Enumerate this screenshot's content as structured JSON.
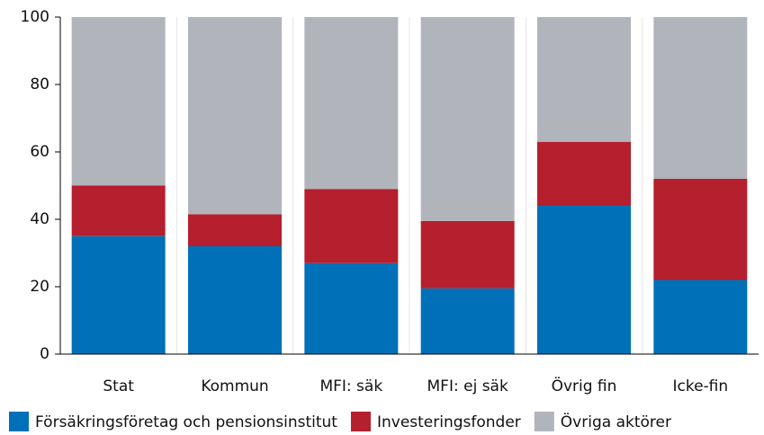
{
  "chart_data": {
    "type": "stacked-bar",
    "categories": [
      "Stat",
      "Kommun",
      "MFI: säk",
      "MFI: ej säk",
      "Övrig fin",
      "Icke-fin"
    ],
    "series": [
      {
        "name": "Försäkringsföretag och pensionsinstitut",
        "color": "#0070b8",
        "values": [
          35,
          32,
          27,
          19.5,
          44,
          22
        ]
      },
      {
        "name": "Investeringsfonder",
        "color": "#b51f2e",
        "values": [
          15,
          9.5,
          22,
          20,
          19,
          30
        ]
      },
      {
        "name": "Övriga aktörer",
        "color": "#b1b4bb",
        "values": [
          50,
          58.5,
          51,
          60.5,
          37,
          48
        ]
      }
    ],
    "ylim": [
      0,
      100
    ],
    "yticks": [
      0,
      20,
      40,
      60,
      80,
      100
    ]
  }
}
